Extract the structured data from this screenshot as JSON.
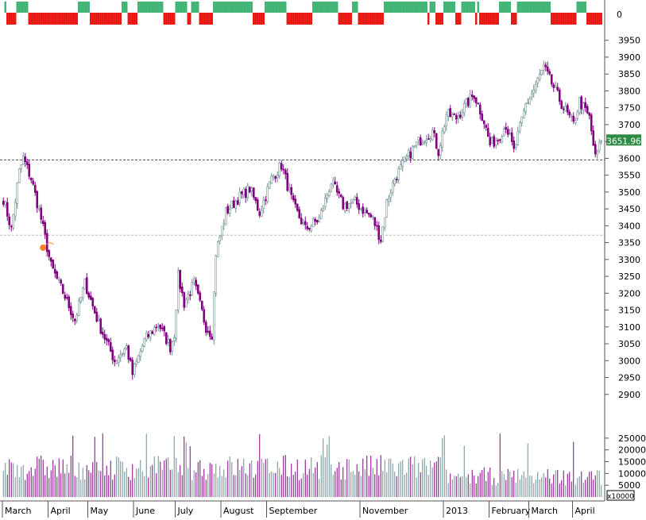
{
  "chart_data": {
    "type": "candlestick",
    "title": "",
    "xlabel": "",
    "ylabel": "",
    "months": [
      {
        "label": "March",
        "day_start": 0,
        "day_end": 23
      },
      {
        "label": "April",
        "day_start": 23,
        "day_end": 43
      },
      {
        "label": "May",
        "day_start": 43,
        "day_end": 66
      },
      {
        "label": "June",
        "day_start": 66,
        "day_end": 87
      },
      {
        "label": "July",
        "day_start": 87,
        "day_end": 110
      },
      {
        "label": "August",
        "day_start": 110,
        "day_end": 133
      },
      {
        "label": "September",
        "day_start": 133,
        "day_end": 180
      },
      {
        "label": "November",
        "day_start": 180,
        "day_end": 222
      },
      {
        "label": "2013",
        "day_start": 222,
        "day_end": 245
      },
      {
        "label": "February",
        "day_start": 245,
        "day_end": 265
      },
      {
        "label": "March",
        "day_start": 265,
        "day_end": 287
      },
      {
        "label": "April",
        "day_start": 287,
        "day_end": 302
      }
    ],
    "price_axis": {
      "ylim": [
        2850,
        3980
      ],
      "ticks": [
        2900,
        2950,
        3000,
        3050,
        3100,
        3150,
        3200,
        3250,
        3300,
        3350,
        3400,
        3450,
        3500,
        3550,
        3600,
        3650,
        3700,
        3750,
        3800,
        3850,
        3900,
        3950
      ]
    },
    "last_price": 3651.96,
    "last_price_label": "3651.96",
    "reference_lines": [
      3595,
      3372
    ],
    "marker": {
      "day": 20,
      "value": 3335
    },
    "volume_axis": {
      "ylim": [
        0,
        29000
      ],
      "ticks": [
        5000,
        10000,
        15000,
        20000,
        25000
      ],
      "unit_label": "x10000"
    },
    "top_indicator_label": "0",
    "trend_anchors": [
      [
        0,
        3480
      ],
      [
        4,
        3390
      ],
      [
        8,
        3560
      ],
      [
        10,
        3600
      ],
      [
        14,
        3540
      ],
      [
        19,
        3420
      ],
      [
        24,
        3280
      ],
      [
        31,
        3190
      ],
      [
        36,
        3120
      ],
      [
        41,
        3230
      ],
      [
        48,
        3110
      ],
      [
        56,
        3000
      ],
      [
        62,
        3040
      ],
      [
        65,
        2960
      ],
      [
        71,
        3060
      ],
      [
        78,
        3110
      ],
      [
        84,
        3040
      ],
      [
        86,
        3080
      ],
      [
        88,
        3250
      ],
      [
        91,
        3170
      ],
      [
        96,
        3230
      ],
      [
        102,
        3100
      ],
      [
        105,
        3080
      ],
      [
        107,
        3320
      ],
      [
        112,
        3440
      ],
      [
        118,
        3480
      ],
      [
        124,
        3510
      ],
      [
        129,
        3440
      ],
      [
        135,
        3540
      ],
      [
        140,
        3580
      ],
      [
        146,
        3460
      ],
      [
        152,
        3390
      ],
      [
        159,
        3420
      ],
      [
        165,
        3530
      ],
      [
        171,
        3460
      ],
      [
        177,
        3470
      ],
      [
        186,
        3420
      ],
      [
        190,
        3360
      ],
      [
        193,
        3470
      ],
      [
        197,
        3540
      ],
      [
        203,
        3600
      ],
      [
        209,
        3650
      ],
      [
        216,
        3680
      ],
      [
        219,
        3620
      ],
      [
        223,
        3730
      ],
      [
        228,
        3720
      ],
      [
        233,
        3760
      ],
      [
        237,
        3790
      ],
      [
        242,
        3710
      ],
      [
        245,
        3640
      ],
      [
        249,
        3660
      ],
      [
        253,
        3700
      ],
      [
        257,
        3620
      ],
      [
        263,
        3760
      ],
      [
        266,
        3790
      ],
      [
        272,
        3870
      ],
      [
        277,
        3810
      ],
      [
        282,
        3750
      ],
      [
        287,
        3700
      ],
      [
        290,
        3770
      ],
      [
        295,
        3720
      ],
      [
        298,
        3600
      ],
      [
        301,
        3652
      ]
    ]
  }
}
